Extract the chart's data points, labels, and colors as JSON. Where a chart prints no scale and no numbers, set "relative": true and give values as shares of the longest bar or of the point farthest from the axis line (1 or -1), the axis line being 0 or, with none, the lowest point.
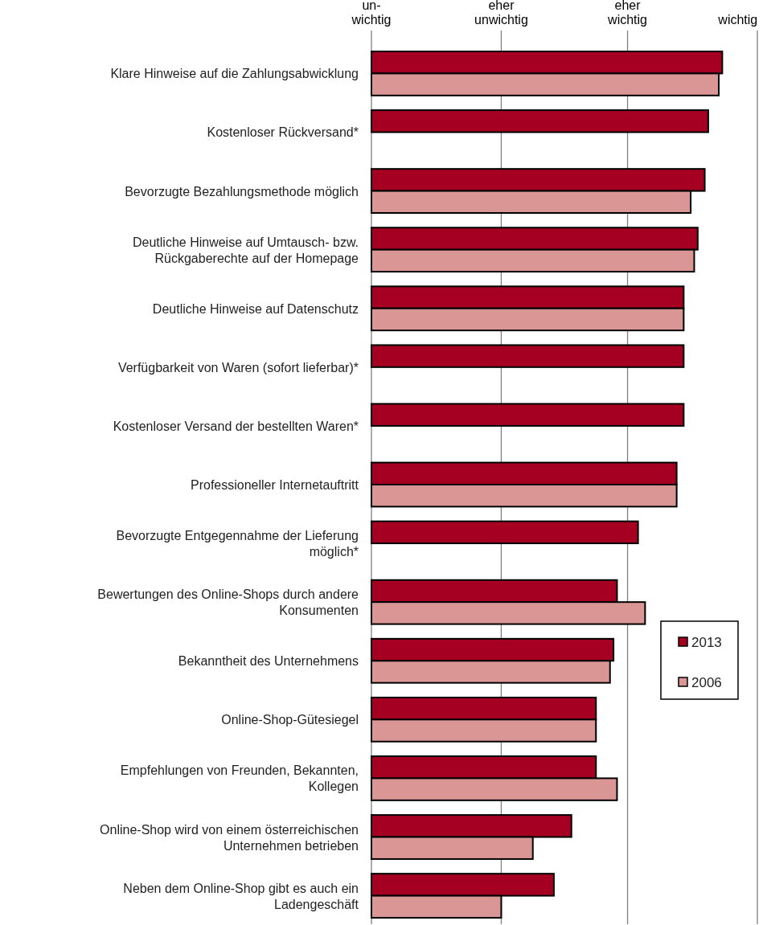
{
  "chart_data": {
    "type": "bar",
    "orientation": "horizontal",
    "relative": true,
    "categories": [
      "Klare Hinweise auf die Zahlungsabwicklung",
      "Kostenloser Rückversand*",
      "Bevorzugte Bezahlungsmethode möglich",
      "Deutliche Hinweise auf Umtausch- bzw.\nRückgaberechte auf der Homepage",
      "Deutliche Hinweise auf Datenschutz",
      "Verfügbarkeit von Waren (sofort lieferbar)*",
      "Kostenloser Versand der bestellten Waren*",
      "Professioneller Internetauftritt",
      "Bevorzugte Entgegennahme der Lieferung\nmöglich*",
      "Bewertungen des Online-Shops durch andere\nKonsumenten",
      "Bekanntheit des Unternehmens",
      "Online-Shop-Gütesiegel",
      "Empfehlungen von Freunden, Bekannten,\nKollegen",
      "Online-Shop wird von einem österreichischen\nUnternehmen betrieben",
      "Neben dem Online-Shop gibt es auch ein\nLadengeschäft"
    ],
    "series": [
      {
        "name": "2013",
        "color": "#a50021",
        "values": [
          1.0,
          0.96,
          0.95,
          0.93,
          0.89,
          0.89,
          0.89,
          0.87,
          0.76,
          0.7,
          0.69,
          0.64,
          0.64,
          0.57,
          0.52
        ]
      },
      {
        "name": "2006",
        "color": "#da9694",
        "values": [
          0.99,
          null,
          0.91,
          0.92,
          0.89,
          null,
          null,
          0.87,
          null,
          0.78,
          0.68,
          0.64,
          0.7,
          0.46,
          0.37
        ]
      }
    ],
    "ref_lines": [
      {
        "axis": "x",
        "value": 0,
        "label": "un-\nwichtig",
        "color": "#808080"
      },
      {
        "axis": "x",
        "value": 0.37,
        "label": "eher\nunwichtig",
        "color": "#808080"
      },
      {
        "axis": "x",
        "value": 0.73,
        "label": "eher\nwichtig",
        "color": "#808080"
      },
      {
        "axis": "x",
        "value": 1.1,
        "label": "wichtig",
        "color": "#808080"
      }
    ],
    "legend": "right"
  }
}
